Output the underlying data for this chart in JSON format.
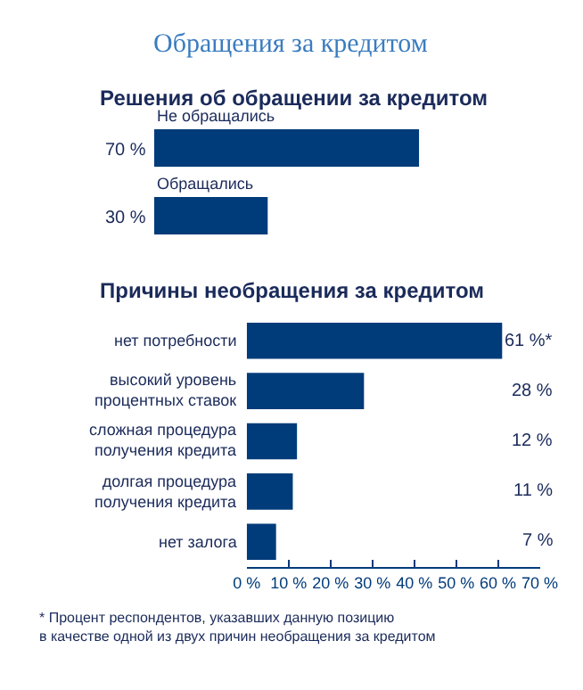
{
  "chart_data": [
    {
      "type": "bar",
      "orientation": "horizontal",
      "title": "Обращения за кредитом",
      "subtitle": "Решения об обращении за кредитом",
      "categories": [
        "Не обращались",
        "Обращались"
      ],
      "values": [
        70,
        30
      ],
      "value_labels": [
        "70 %",
        "30 %"
      ],
      "color": "#003b7a",
      "tick_labels": "y"
    },
    {
      "type": "bar",
      "orientation": "horizontal",
      "title": "Причины необращения за кредитом",
      "categories": [
        "нет потребности",
        "высокий уровень\nпроцентных ставок",
        "сложная процедура\nполучения кредита",
        "долгая процедура\nполучения кредита",
        "нет залога"
      ],
      "values": [
        61,
        28,
        12,
        11,
        7
      ],
      "value_labels": [
        "61 %*",
        "28 %",
        "12 %",
        "11 %",
        "7 %"
      ],
      "color": "#003b7a",
      "xlim": [
        0,
        70
      ],
      "xticks": [
        {
          "value": 0,
          "label": "0 %"
        },
        {
          "value": 10,
          "label": "10 %"
        },
        {
          "value": 20,
          "label": "20 %"
        },
        {
          "value": 30,
          "label": "30 %"
        },
        {
          "value": 40,
          "label": "40 %"
        },
        {
          "value": 50,
          "label": "50 %"
        },
        {
          "value": 60,
          "label": "60 %"
        },
        {
          "value": 70,
          "label": "70 %"
        }
      ],
      "annotations": [
        "* Процент респондентов, указавших данную позицию\nв качестве одной из двух причин необращения за кредитом"
      ]
    }
  ]
}
